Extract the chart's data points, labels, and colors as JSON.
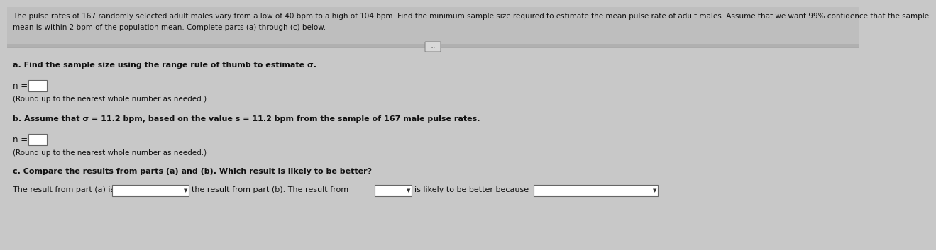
{
  "bg_color": "#c8c8c8",
  "header_bg": "#c0c0c0",
  "body_bg": "#c8c8c8",
  "header_text_line1": "The pulse rates of 167 randomly selected adult males vary from a low of 40 bpm to a high of 104 bpm. Find the minimum sample size required to estimate the mean pulse rate of adult males. Assume that we want 99% confidence that the sample",
  "header_text_line2": "mean is within 2 bpm of the population mean. Complete parts (a) through (c) below.",
  "part_a_label": "a. Find the sample size using the range rule of thumb to estimate σ.",
  "part_a_n": "n =",
  "part_a_round": "(Round up to the nearest whole number as needed.)",
  "part_b_label": "b. Assume that σ = 11.2 bpm, based on the value s = 11.2 bpm from the sample of 167 male pulse rates.",
  "part_b_n": "n =",
  "part_b_round": "(Round up to the nearest whole number as needed.)",
  "part_c_label": "c. Compare the results from parts (a) and (b). Which result is likely to be better?",
  "part_c_text1": "The result from part (a) is",
  "part_c_text2": "the result from part (b). The result from",
  "part_c_text3": "is likely to be better because",
  "text_color": "#111111",
  "box_color": "#ffffff",
  "box_border": "#666666",
  "divider_color": "#999999",
  "ellipsis_text": "..."
}
